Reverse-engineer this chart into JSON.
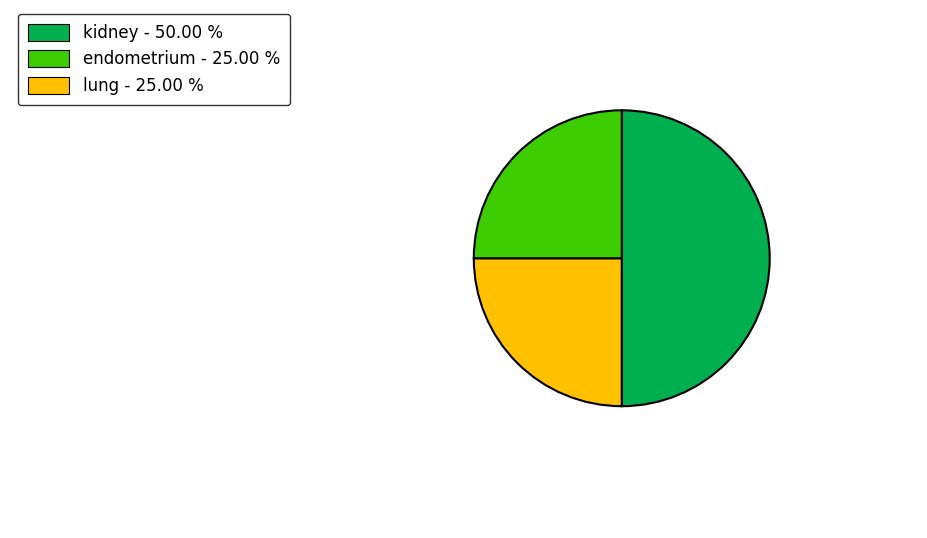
{
  "labels": [
    "kidney",
    "lung",
    "endometrium"
  ],
  "values": [
    50.0,
    25.0,
    25.0
  ],
  "colors": [
    "#00B050",
    "#FFC000",
    "#3DCC00"
  ],
  "legend_labels": [
    "kidney - 50.00 %",
    "endometrium - 25.00 %",
    "lung - 25.00 %"
  ],
  "legend_colors": [
    "#00B050",
    "#3DCC00",
    "#FFC000"
  ],
  "startangle": 90,
  "background_color": "#ffffff"
}
